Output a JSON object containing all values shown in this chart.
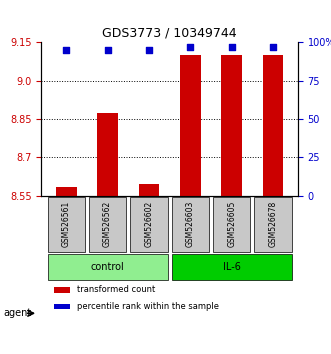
{
  "title": "GDS3773 / 10349744",
  "samples": [
    "GSM526561",
    "GSM526562",
    "GSM526602",
    "GSM526603",
    "GSM526605",
    "GSM526678"
  ],
  "transformed_counts": [
    8.585,
    8.875,
    8.595,
    9.1,
    9.1,
    9.1
  ],
  "percentile_ranks": [
    95,
    95,
    95,
    97,
    97,
    97
  ],
  "ylim_left": [
    8.55,
    9.15
  ],
  "ylim_right": [
    0,
    100
  ],
  "left_ticks": [
    8.55,
    8.7,
    8.85,
    9.0,
    9.15
  ],
  "right_ticks": [
    0,
    25,
    50,
    75,
    100
  ],
  "right_tick_labels": [
    "0",
    "25",
    "50",
    "75",
    "100%"
  ],
  "grid_values": [
    9.0,
    8.85,
    8.7
  ],
  "groups": [
    {
      "label": "control",
      "indices": [
        0,
        1,
        2
      ],
      "color": "#90EE90"
    },
    {
      "label": "IL-6",
      "indices": [
        3,
        4,
        5
      ],
      "color": "#00CC00"
    }
  ],
  "bar_color": "#CC0000",
  "dot_color": "#0000CC",
  "bar_width": 0.5,
  "agent_label": "agent",
  "legend_items": [
    {
      "color": "#CC0000",
      "label": "transformed count"
    },
    {
      "color": "#0000CC",
      "label": "percentile rank within the sample"
    }
  ],
  "xlabel_color": "black",
  "left_axis_color": "#CC0000",
  "right_axis_color": "#0000CC",
  "sample_box_color": "#C8C8C8",
  "figsize": [
    3.31,
    3.54
  ],
  "dpi": 100
}
